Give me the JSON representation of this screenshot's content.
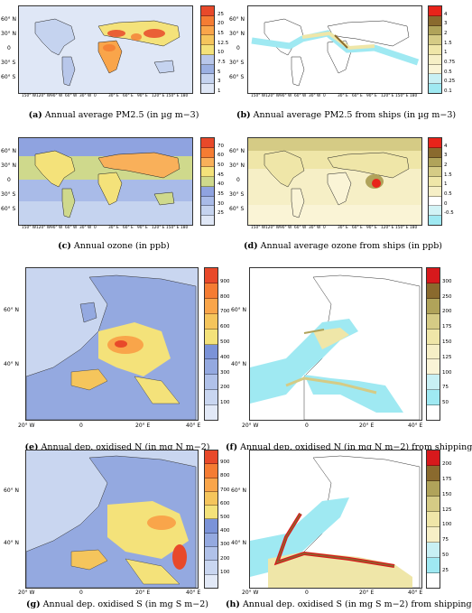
{
  "panels": [
    {
      "letter": "(a)",
      "caption": "Annual average PM2.5 (in µg m−3)",
      "ticks": [
        "25",
        "20",
        "15",
        "12.5",
        "10",
        "7.5",
        "5",
        "3",
        "1"
      ],
      "colors": [
        "#e8492a",
        "#f57c33",
        "#f9a54a",
        "#f5c55c",
        "#f4e27a",
        "#b8c7ea",
        "#9bb0e2",
        "#c5d3ef",
        "#dfe7f6"
      ]
    },
    {
      "letter": "(b)",
      "caption": "Annual average PM2.5 from ships (in µg m−3)",
      "ticks": [
        "4",
        "3",
        "2",
        "1.5",
        "1",
        "0.75",
        "0.5",
        "0.25",
        "0.1"
      ],
      "colors": [
        "#e8231a",
        "#8a6a2e",
        "#b0a35a",
        "#d5cb85",
        "#efe6a8",
        "#f6efc6",
        "#faf4d6",
        "#c8f0f4",
        "#9fe9f2"
      ]
    },
    {
      "letter": "(c)",
      "caption": "Annual ozone (in ppb)",
      "ticks": [
        "70",
        "60",
        "50",
        "45",
        "40",
        "35",
        "30",
        "25"
      ],
      "colors": [
        "#e8492a",
        "#f57c33",
        "#f9b05a",
        "#f4e27a",
        "#cfd98c",
        "#8fa3e0",
        "#a9bbe8",
        "#c5d3ef",
        "#dfe7f6"
      ]
    },
    {
      "letter": "(d)",
      "caption": "Annual average ozone from ships (in ppb)",
      "ticks": [
        "4",
        "3",
        "2",
        "1.5",
        "1",
        "0.5",
        "0",
        "-0.5"
      ],
      "colors": [
        "#e8231a",
        "#8a6a2e",
        "#b0a35a",
        "#d5cb85",
        "#efe6a8",
        "#f6efc6",
        "#ffffff",
        "#d2f3f6",
        "#9fe9f2"
      ]
    },
    {
      "letter": "(e)",
      "caption": "Annual dep. oxidised N (in mg N m−2)",
      "ticks": [
        "900",
        "800",
        "700",
        "600",
        "500",
        "400",
        "300",
        "200",
        "100"
      ],
      "colors": [
        "#e8492a",
        "#f57c33",
        "#f9a54a",
        "#f5c55c",
        "#f4e27a",
        "#7b93d8",
        "#94a9e0",
        "#b0c1e9",
        "#c9d6f0",
        "#e2e9f7"
      ]
    },
    {
      "letter": "(f)",
      "caption": "Annual dep. oxidised N (in mg N m−2) from shipping",
      "ticks": [
        "300",
        "250",
        "200",
        "175",
        "150",
        "125",
        "100",
        "75",
        "50"
      ],
      "colors": [
        "#d7191c",
        "#8a6a2e",
        "#b0a35a",
        "#d5cb85",
        "#efe6a8",
        "#f6efc6",
        "#faf4d6",
        "#c8f0f4",
        "#9fe9f2",
        "#ffffff"
      ]
    },
    {
      "letter": "(g)",
      "caption": "Annual dep. oxidised S (in mg S m−2)",
      "ticks": [
        "900",
        "800",
        "700",
        "600",
        "500",
        "400",
        "300",
        "200",
        "100"
      ],
      "colors": [
        "#e8492a",
        "#f57c33",
        "#f9a54a",
        "#f5c55c",
        "#f4e27a",
        "#7b93d8",
        "#94a9e0",
        "#b0c1e9",
        "#c9d6f0",
        "#e2e9f7"
      ]
    },
    {
      "letter": "(h)",
      "caption": "Annual dep. oxidised S (in mg S m−2) from shipping",
      "ticks": [
        "200",
        "175",
        "150",
        "125",
        "100",
        "75",
        "50",
        "25"
      ],
      "colors": [
        "#d7191c",
        "#8a6a2e",
        "#b0a35a",
        "#d5cb85",
        "#efe6a8",
        "#f6efc6",
        "#c8f0f4",
        "#9fe9f2",
        "#ffffff"
      ]
    }
  ],
  "world_lat_labels": [
    "60° N",
    "30° N",
    "0",
    "30° S",
    "60° S"
  ],
  "world_lon_labels": [
    "150° W",
    "120° W",
    "90° W",
    "60° W",
    "30° W",
    "0",
    "30° E",
    "60° E",
    "90° E",
    "120° E",
    "150° E",
    "180"
  ],
  "europe_lat_labels": [
    "60° N",
    "40° N"
  ],
  "europe_lon_labels": [
    "20° W",
    "0",
    "20° E",
    "40° E"
  ]
}
